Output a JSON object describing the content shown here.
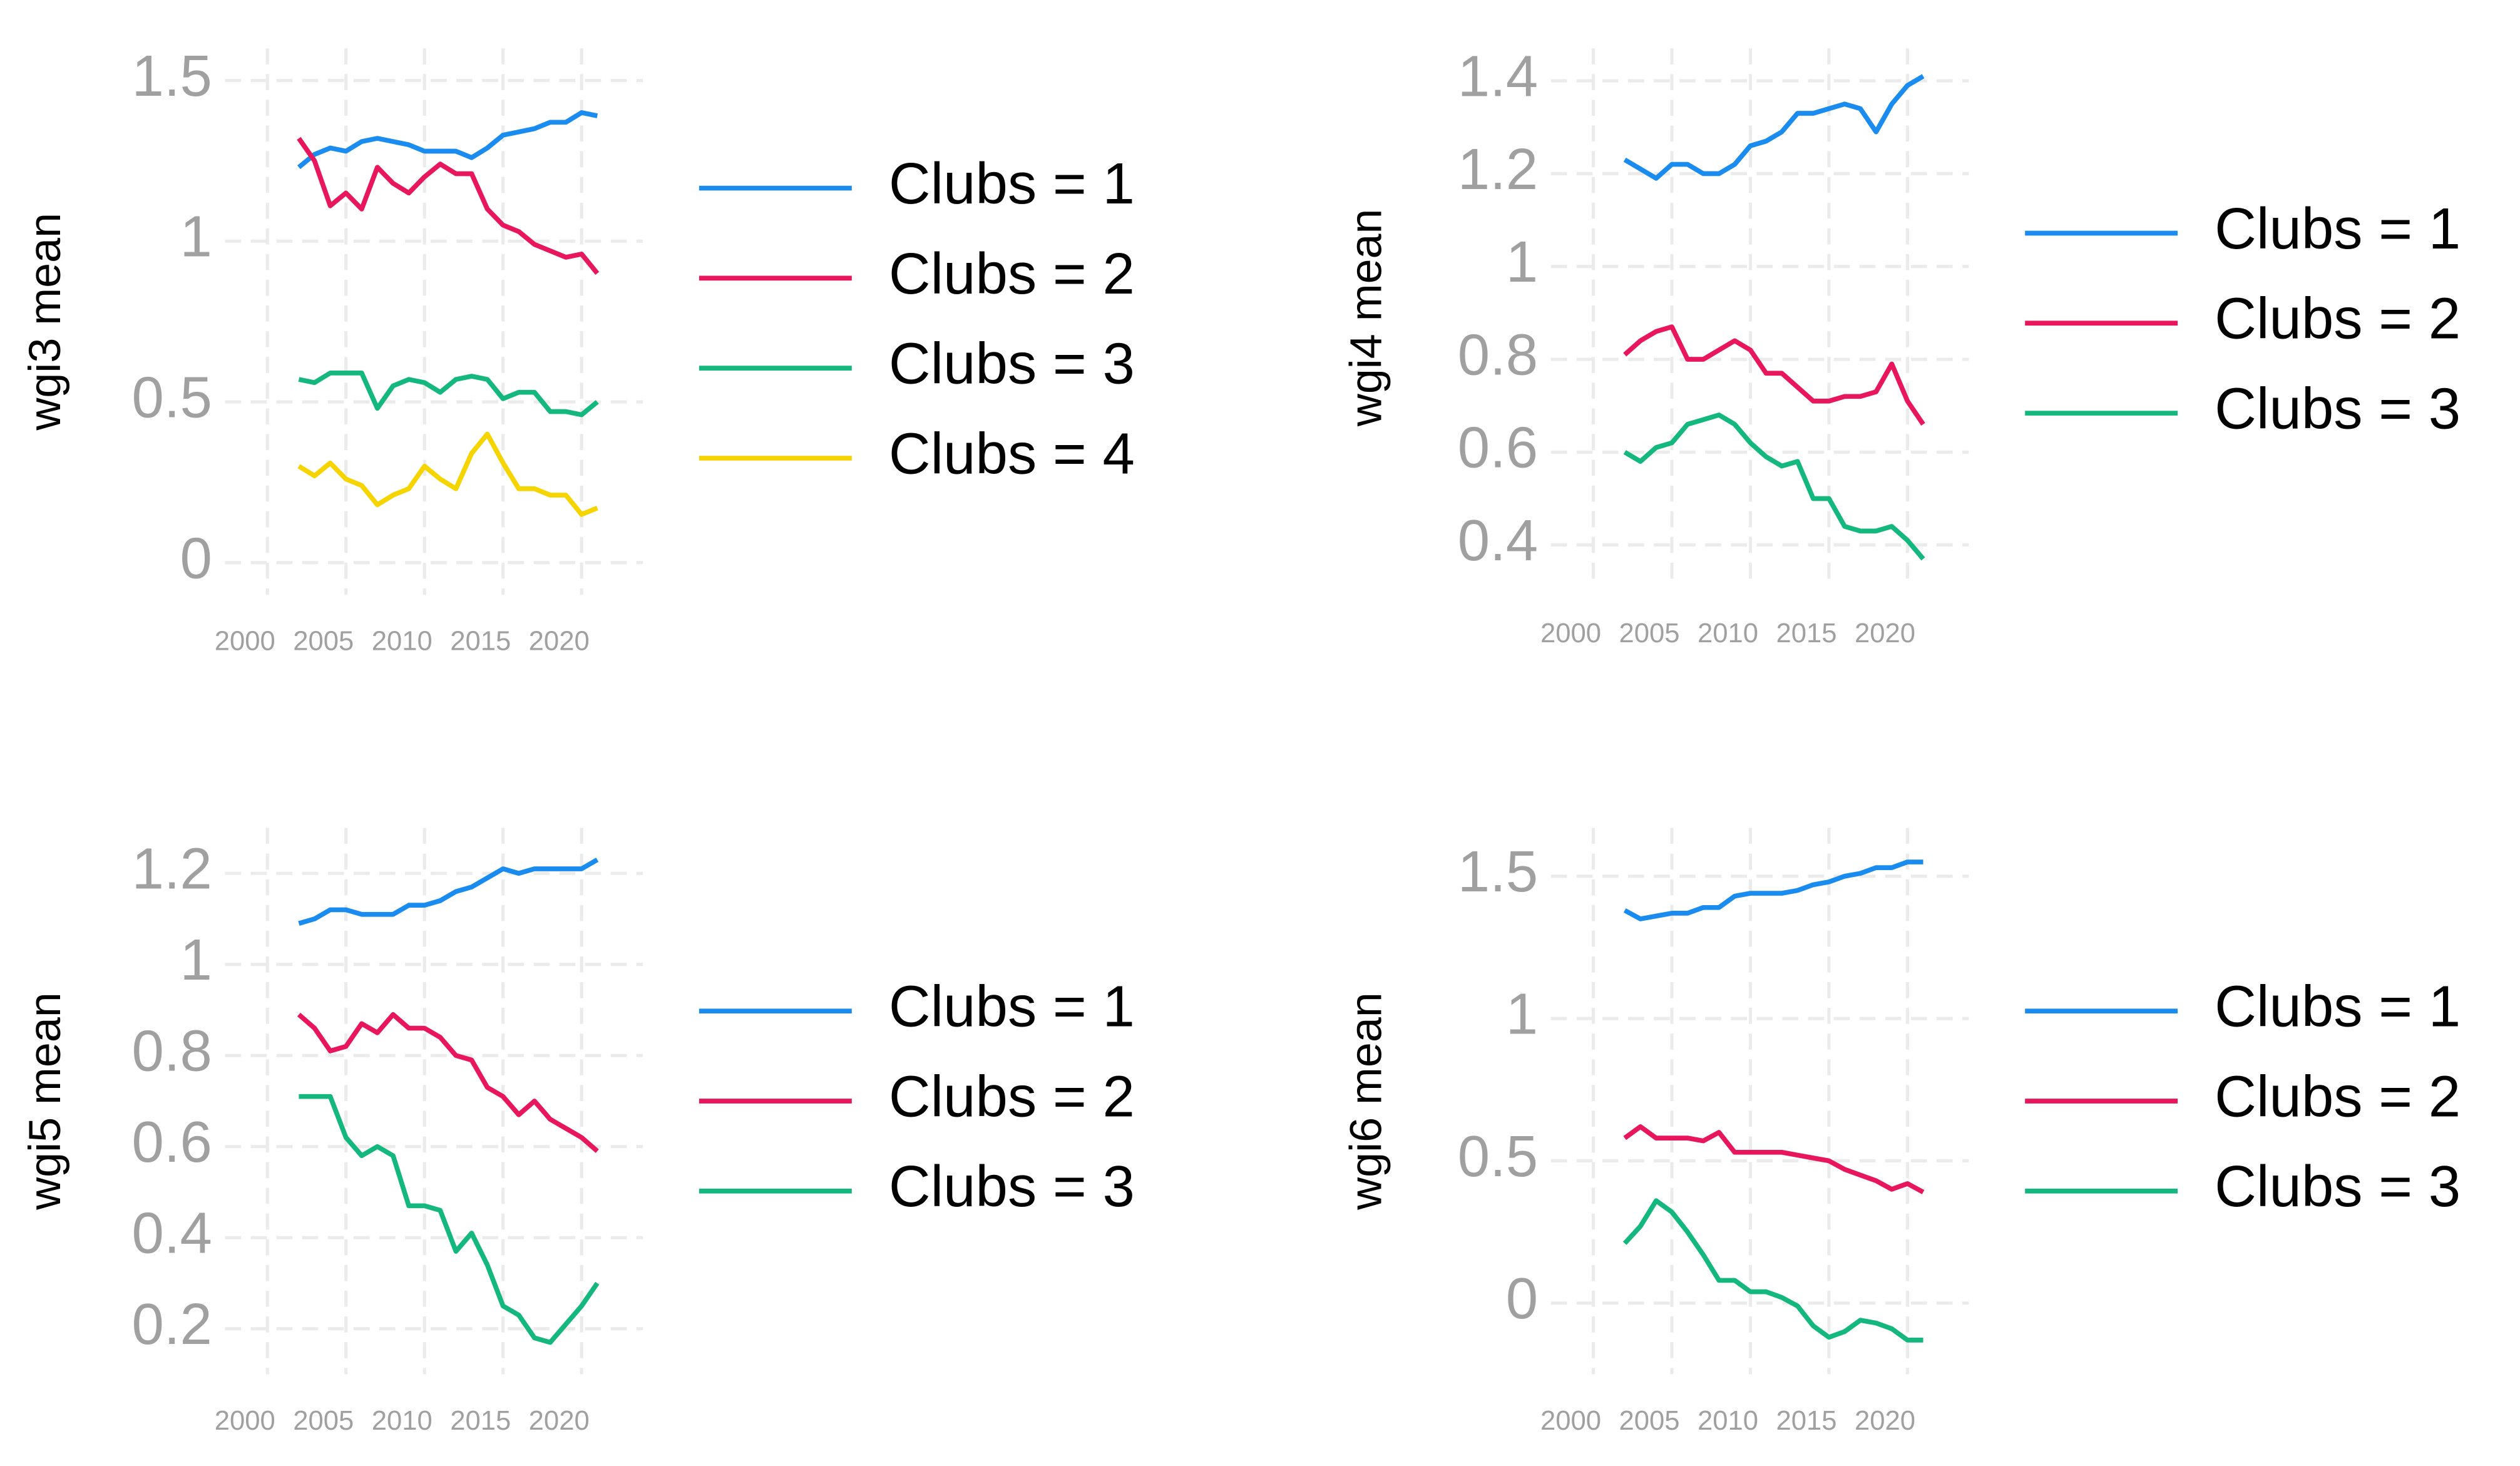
{
  "chart_data": [
    {
      "type": "line",
      "ylabel": "wgi3 mean",
      "x": [
        2002,
        2003,
        2004,
        2005,
        2006,
        2007,
        2008,
        2009,
        2010,
        2011,
        2012,
        2013,
        2014,
        2015,
        2016,
        2017,
        2018,
        2019,
        2020,
        2021
      ],
      "xlim": [
        1997.3,
        2023.9
      ],
      "xticks": [
        2000,
        2005,
        2010,
        2015,
        2020
      ],
      "ylim": [
        -0.1,
        1.6
      ],
      "yticks": [
        0,
        0.5,
        1,
        1.5
      ],
      "grid": true,
      "series": [
        {
          "name": "Clubs = 1",
          "color": "#1a8cf0",
          "values": [
            1.23,
            1.27,
            1.29,
            1.28,
            1.31,
            1.32,
            1.31,
            1.3,
            1.28,
            1.28,
            1.28,
            1.26,
            1.29,
            1.33,
            1.34,
            1.35,
            1.37,
            1.37,
            1.4,
            1.39
          ]
        },
        {
          "name": "Clubs = 2",
          "color": "#e8175d",
          "values": [
            1.32,
            1.25,
            1.11,
            1.15,
            1.1,
            1.23,
            1.18,
            1.15,
            1.2,
            1.24,
            1.21,
            1.21,
            1.1,
            1.05,
            1.03,
            0.99,
            0.97,
            0.95,
            0.96,
            0.9
          ]
        },
        {
          "name": "Clubs = 3",
          "color": "#14b87e",
          "values": [
            0.57,
            0.56,
            0.59,
            0.59,
            0.59,
            0.48,
            0.55,
            0.57,
            0.56,
            0.53,
            0.57,
            0.58,
            0.57,
            0.51,
            0.53,
            0.53,
            0.47,
            0.47,
            0.46,
            0.5
          ]
        },
        {
          "name": "Clubs = 4",
          "color": "#f5d400",
          "values": [
            0.3,
            0.27,
            0.31,
            0.26,
            0.24,
            0.18,
            0.21,
            0.23,
            0.3,
            0.26,
            0.23,
            0.34,
            0.4,
            0.31,
            0.23,
            0.23,
            0.21,
            0.21,
            0.15,
            0.17
          ]
        }
      ]
    },
    {
      "type": "line",
      "ylabel": "wgi4 mean",
      "x": [
        2002,
        2003,
        2004,
        2005,
        2006,
        2007,
        2008,
        2009,
        2010,
        2011,
        2012,
        2013,
        2014,
        2015,
        2016,
        2017,
        2018,
        2019,
        2020,
        2021
      ],
      "xlim": [
        1997.3,
        2023.9
      ],
      "xticks": [
        2000,
        2005,
        2010,
        2015,
        2020
      ],
      "ylim": [
        0.31,
        1.47
      ],
      "yticks": [
        0.4,
        0.6,
        0.8,
        1,
        1.2,
        1.4
      ],
      "grid": true,
      "series": [
        {
          "name": "Clubs = 1",
          "color": "#1a8cf0",
          "values": [
            1.23,
            1.21,
            1.19,
            1.22,
            1.22,
            1.2,
            1.2,
            1.22,
            1.26,
            1.27,
            1.29,
            1.33,
            1.33,
            1.34,
            1.35,
            1.34,
            1.29,
            1.35,
            1.39,
            1.41
          ]
        },
        {
          "name": "Clubs = 2",
          "color": "#e8175d",
          "values": [
            0.81,
            0.84,
            0.86,
            0.87,
            0.8,
            0.8,
            0.82,
            0.84,
            0.82,
            0.77,
            0.77,
            0.74,
            0.71,
            0.71,
            0.72,
            0.72,
            0.73,
            0.79,
            0.71,
            0.66
          ]
        },
        {
          "name": "Clubs = 3",
          "color": "#14b87e",
          "values": [
            0.6,
            0.58,
            0.61,
            0.62,
            0.66,
            0.67,
            0.68,
            0.66,
            0.62,
            0.59,
            0.57,
            0.58,
            0.5,
            0.5,
            0.44,
            0.43,
            0.43,
            0.44,
            0.41,
            0.37
          ]
        }
      ]
    },
    {
      "type": "line",
      "ylabel": "wgi5 mean",
      "x": [
        2002,
        2003,
        2004,
        2005,
        2006,
        2007,
        2008,
        2009,
        2010,
        2011,
        2012,
        2013,
        2014,
        2015,
        2016,
        2017,
        2018,
        2019,
        2020,
        2021
      ],
      "xlim": [
        1997.3,
        2023.9
      ],
      "xticks": [
        2000,
        2005,
        2010,
        2015,
        2020
      ],
      "ylim": [
        0.1,
        1.3
      ],
      "yticks": [
        0.2,
        0.4,
        0.6,
        0.8,
        1,
        1.2
      ],
      "grid": true,
      "series": [
        {
          "name": "Clubs = 1",
          "color": "#1a8cf0",
          "values": [
            1.09,
            1.1,
            1.12,
            1.12,
            1.11,
            1.11,
            1.11,
            1.13,
            1.13,
            1.14,
            1.16,
            1.17,
            1.19,
            1.21,
            1.2,
            1.21,
            1.21,
            1.21,
            1.21,
            1.23
          ]
        },
        {
          "name": "Clubs = 2",
          "color": "#e8175d",
          "values": [
            0.89,
            0.86,
            0.81,
            0.82,
            0.87,
            0.85,
            0.89,
            0.86,
            0.86,
            0.84,
            0.8,
            0.79,
            0.73,
            0.71,
            0.67,
            0.7,
            0.66,
            0.64,
            0.62,
            0.59
          ]
        },
        {
          "name": "Clubs = 3",
          "color": "#14b87e",
          "values": [
            0.71,
            0.71,
            0.71,
            0.62,
            0.58,
            0.6,
            0.58,
            0.47,
            0.47,
            0.46,
            0.37,
            0.41,
            0.34,
            0.25,
            0.23,
            0.18,
            0.17,
            0.21,
            0.25,
            0.3
          ]
        }
      ]
    },
    {
      "type": "line",
      "ylabel": "wgi6 mean",
      "x": [
        2002,
        2003,
        2004,
        2005,
        2006,
        2007,
        2008,
        2009,
        2010,
        2011,
        2012,
        2013,
        2014,
        2015,
        2016,
        2017,
        2018,
        2019,
        2020,
        2021
      ],
      "xlim": [
        1997.3,
        2023.9
      ],
      "xticks": [
        2000,
        2005,
        2010,
        2015,
        2020
      ],
      "ylim": [
        -0.25,
        1.67
      ],
      "yticks": [
        0,
        0.5,
        1,
        1.5
      ],
      "grid": true,
      "series": [
        {
          "name": "Clubs = 1",
          "color": "#1a8cf0",
          "values": [
            1.38,
            1.35,
            1.36,
            1.37,
            1.37,
            1.39,
            1.39,
            1.43,
            1.44,
            1.44,
            1.44,
            1.45,
            1.47,
            1.48,
            1.5,
            1.51,
            1.53,
            1.53,
            1.55,
            1.55
          ]
        },
        {
          "name": "Clubs = 2",
          "color": "#e8175d",
          "values": [
            0.58,
            0.62,
            0.58,
            0.58,
            0.58,
            0.57,
            0.6,
            0.53,
            0.53,
            0.53,
            0.53,
            0.52,
            0.51,
            0.5,
            0.47,
            0.45,
            0.43,
            0.4,
            0.42,
            0.39
          ]
        },
        {
          "name": "Clubs = 3",
          "color": "#14b87e",
          "values": [
            0.21,
            0.27,
            0.36,
            0.32,
            0.25,
            0.17,
            0.08,
            0.08,
            0.04,
            0.04,
            0.02,
            -0.01,
            -0.08,
            -0.12,
            -0.1,
            -0.06,
            -0.07,
            -0.09,
            -0.13,
            -0.13
          ]
        }
      ]
    }
  ]
}
